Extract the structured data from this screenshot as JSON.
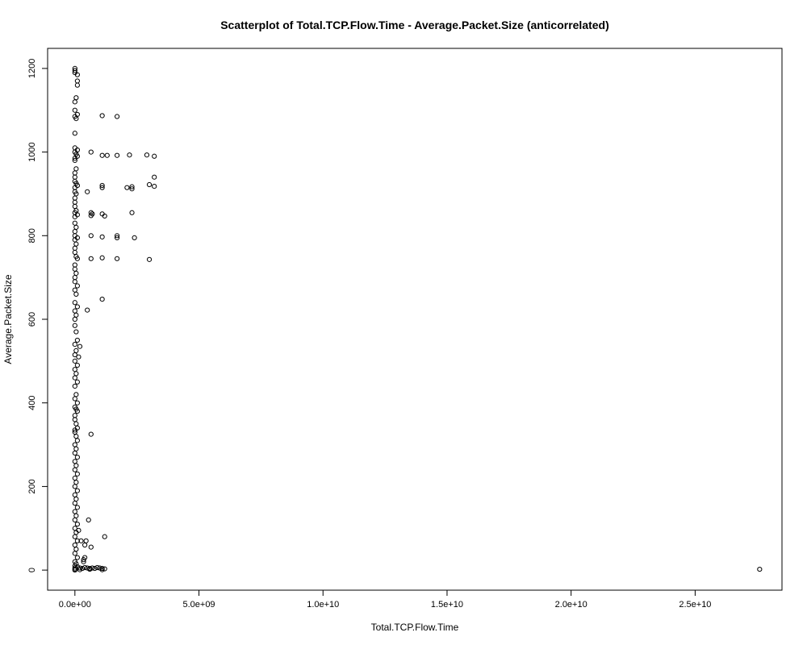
{
  "chart_data": {
    "type": "scatter",
    "title": "Scatterplot of Total.TCP.Flow.Time - Average.Packet.Size (anticorrelated)",
    "xlabel": "Total.TCP.Flow.Time",
    "ylabel": "Average.Packet.Size",
    "xlim": [
      -1100000000.0,
      28500000000.0
    ],
    "ylim": [
      -48,
      1248
    ],
    "x_ticks": [
      0,
      5000000000.0,
      10000000000.0,
      15000000000.0,
      20000000000.0,
      25000000000.0
    ],
    "x_tick_labels": [
      "0.0e+00",
      "5.0e+09",
      "1.0e+10",
      "1.5e+10",
      "2.0e+10",
      "2.5e+10"
    ],
    "y_ticks": [
      0,
      200,
      400,
      600,
      800,
      1000,
      1200
    ],
    "y_tick_labels": [
      "0",
      "200",
      "400",
      "600",
      "800",
      "1000",
      "1200"
    ],
    "grid": false,
    "point_style": "open-circle",
    "points": [
      [
        0,
        1200
      ],
      [
        0,
        1195
      ],
      [
        0,
        1190
      ],
      [
        100000000.0,
        1185
      ],
      [
        100000000.0,
        1170
      ],
      [
        100000000.0,
        1160
      ],
      [
        50000000.0,
        1130
      ],
      [
        0,
        1120
      ],
      [
        0,
        1100
      ],
      [
        100000000.0,
        1090
      ],
      [
        0,
        1085
      ],
      [
        50000000.0,
        1080
      ],
      [
        0,
        1045
      ],
      [
        0,
        1010
      ],
      [
        100000000.0,
        1005
      ],
      [
        0,
        1000
      ],
      [
        50000000.0,
        995
      ],
      [
        100000000.0,
        990
      ],
      [
        0,
        985
      ],
      [
        0,
        980
      ],
      [
        50000000.0,
        960
      ],
      [
        0,
        950
      ],
      [
        0,
        940
      ],
      [
        0,
        930
      ],
      [
        50000000.0,
        925
      ],
      [
        100000000.0,
        920
      ],
      [
        0,
        915
      ],
      [
        0,
        905
      ],
      [
        50000000.0,
        900
      ],
      [
        0,
        890
      ],
      [
        0,
        880
      ],
      [
        0,
        870
      ],
      [
        50000000.0,
        860
      ],
      [
        0,
        855
      ],
      [
        100000000.0,
        850
      ],
      [
        0,
        845
      ],
      [
        0,
        830
      ],
      [
        50000000.0,
        820
      ],
      [
        0,
        810
      ],
      [
        0,
        800
      ],
      [
        100000000.0,
        795
      ],
      [
        0,
        790
      ],
      [
        50000000.0,
        780
      ],
      [
        0,
        770
      ],
      [
        0,
        760
      ],
      [
        50000000.0,
        750
      ],
      [
        100000000.0,
        745
      ],
      [
        0,
        730
      ],
      [
        0,
        720
      ],
      [
        50000000.0,
        710
      ],
      [
        0,
        700
      ],
      [
        0,
        690
      ],
      [
        100000000.0,
        680
      ],
      [
        0,
        670
      ],
      [
        50000000.0,
        660
      ],
      [
        0,
        640
      ],
      [
        100000000.0,
        630
      ],
      [
        0,
        620
      ],
      [
        50000000.0,
        610
      ],
      [
        0,
        600
      ],
      [
        0,
        585
      ],
      [
        50000000.0,
        570
      ],
      [
        100000000.0,
        550
      ],
      [
        0,
        540
      ],
      [
        200000000.0,
        535
      ],
      [
        50000000.0,
        525
      ],
      [
        0,
        515
      ],
      [
        150000000.0,
        510
      ],
      [
        0,
        500
      ],
      [
        100000000.0,
        490
      ],
      [
        0,
        480
      ],
      [
        50000000.0,
        470
      ],
      [
        0,
        460
      ],
      [
        100000000.0,
        450
      ],
      [
        0,
        440
      ],
      [
        50000000.0,
        420
      ],
      [
        0,
        410
      ],
      [
        100000000.0,
        400
      ],
      [
        0,
        390
      ],
      [
        50000000.0,
        385
      ],
      [
        100000000.0,
        380
      ],
      [
        0,
        370
      ],
      [
        0,
        360
      ],
      [
        50000000.0,
        350
      ],
      [
        100000000.0,
        340
      ],
      [
        0,
        335
      ],
      [
        0,
        330
      ],
      [
        50000000.0,
        320
      ],
      [
        100000000.0,
        310
      ],
      [
        0,
        300
      ],
      [
        50000000.0,
        290
      ],
      [
        0,
        280
      ],
      [
        100000000.0,
        270
      ],
      [
        0,
        260
      ],
      [
        50000000.0,
        250
      ],
      [
        0,
        240
      ],
      [
        100000000.0,
        230
      ],
      [
        0,
        220
      ],
      [
        50000000.0,
        210
      ],
      [
        0,
        200
      ],
      [
        100000000.0,
        190
      ],
      [
        0,
        180
      ],
      [
        50000000.0,
        170
      ],
      [
        0,
        160
      ],
      [
        100000000.0,
        150
      ],
      [
        0,
        140
      ],
      [
        50000000.0,
        130
      ],
      [
        0,
        120
      ],
      [
        100000000.0,
        110
      ],
      [
        0,
        100
      ],
      [
        50000000.0,
        90
      ],
      [
        0,
        80
      ],
      [
        100000000.0,
        70
      ],
      [
        0,
        60
      ],
      [
        50000000.0,
        50
      ],
      [
        0,
        40
      ],
      [
        100000000.0,
        30
      ],
      [
        0,
        20
      ],
      [
        50000000.0,
        15
      ],
      [
        0,
        10
      ],
      [
        0,
        5
      ],
      [
        0,
        2
      ],
      [
        0,
        0
      ],
      [
        100000000.0,
        8
      ],
      [
        200000000.0,
        5
      ],
      [
        300000000.0,
        4
      ],
      [
        400000000.0,
        6
      ],
      [
        500000000.0,
        5
      ],
      [
        600000000.0,
        4
      ],
      [
        700000000.0,
        5
      ],
      [
        800000000.0,
        4
      ],
      [
        900000000.0,
        6
      ],
      [
        1000000000.0,
        5
      ],
      [
        1100000000.0,
        4
      ],
      [
        1200000000.0,
        3
      ],
      [
        200000000.0,
        1
      ],
      [
        600000000.0,
        2
      ],
      [
        1100000000.0,
        1
      ],
      [
        150000000.0,
        95
      ],
      [
        250000000.0,
        70
      ],
      [
        350000000.0,
        25
      ],
      [
        350000000.0,
        20
      ],
      [
        400000000.0,
        60
      ],
      [
        400000000.0,
        30
      ],
      [
        450000000.0,
        70
      ],
      [
        550000000.0,
        120
      ],
      [
        650000000.0,
        55
      ],
      [
        1200000000.0,
        80
      ],
      [
        650000000.0,
        325
      ],
      [
        1100000000.0,
        1087
      ],
      [
        1700000000.0,
        1085
      ],
      [
        650000000.0,
        1000
      ],
      [
        1100000000.0,
        992
      ],
      [
        1300000000.0,
        992
      ],
      [
        1700000000.0,
        992
      ],
      [
        2200000000.0,
        993
      ],
      [
        2900000000.0,
        993
      ],
      [
        3200000000.0,
        990
      ],
      [
        3200000000.0,
        940
      ],
      [
        3000000000.0,
        922
      ],
      [
        3200000000.0,
        918
      ],
      [
        2300000000.0,
        917
      ],
      [
        2300000000.0,
        912
      ],
      [
        2100000000.0,
        915
      ],
      [
        1100000000.0,
        920
      ],
      [
        1100000000.0,
        915
      ],
      [
        500000000.0,
        905
      ],
      [
        650000000.0,
        855
      ],
      [
        700000000.0,
        852
      ],
      [
        650000000.0,
        848
      ],
      [
        1100000000.0,
        852
      ],
      [
        1200000000.0,
        847
      ],
      [
        2300000000.0,
        855
      ],
      [
        650000000.0,
        800
      ],
      [
        1100000000.0,
        797
      ],
      [
        1700000000.0,
        800
      ],
      [
        1700000000.0,
        795
      ],
      [
        2400000000.0,
        795
      ],
      [
        650000000.0,
        745
      ],
      [
        1100000000.0,
        747
      ],
      [
        1700000000.0,
        745
      ],
      [
        3000000000.0,
        743
      ],
      [
        1100000000.0,
        648
      ],
      [
        500000000.0,
        622
      ],
      [
        27600000000.0,
        2
      ]
    ]
  }
}
